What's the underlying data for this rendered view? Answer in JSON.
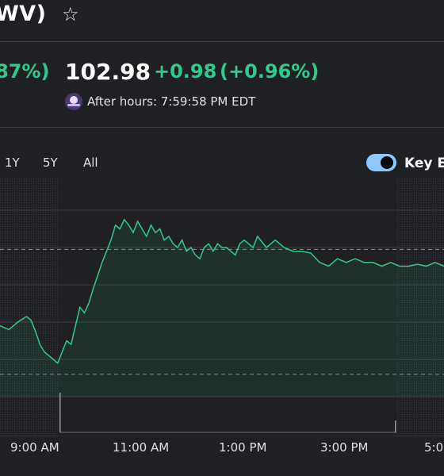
{
  "header": {
    "title": "WV)",
    "star_icon": "star-outline-icon"
  },
  "quote": {
    "regular_pct_partial": "87%)",
    "price": "102.98",
    "change": "+0.98",
    "change_pct": "(+0.96%)",
    "after_hours_icon": "sunset-icon",
    "after_hours_text": "After hours: 7:59:58 PM EDT",
    "positive_color": "#2ecc8a"
  },
  "ranges": [
    "1Y",
    "5Y",
    "All"
  ],
  "key_events": {
    "label": "Key Ev",
    "enabled": true,
    "toggle_color": "#8fc8ff"
  },
  "chart_data": {
    "type": "line",
    "x_tick_labels": [
      "9:00 AM",
      "11:00 AM",
      "1:00 PM",
      "3:00 PM",
      "5:00"
    ],
    "series_color": "#2ecc8a",
    "grid": true,
    "ylim": [
      0,
      100
    ],
    "x_range": [
      0,
      100
    ],
    "reference_levels": [
      79,
      12
    ],
    "extended_hours_shading": true,
    "x": [
      0,
      2,
      4,
      6,
      7,
      8,
      9,
      10,
      11,
      12,
      13,
      14,
      15,
      16,
      17,
      18,
      19,
      20,
      21,
      22,
      23,
      24,
      25,
      26,
      27,
      28,
      29,
      30,
      31,
      32,
      33,
      34,
      35,
      36,
      37,
      38,
      39,
      40,
      41,
      42,
      43,
      44,
      45,
      46,
      47,
      48,
      49,
      50,
      51,
      52,
      53,
      54,
      55,
      56,
      57,
      58,
      60,
      62,
      64,
      66,
      68,
      70,
      72,
      74,
      76,
      78,
      80,
      82,
      84,
      86,
      88,
      90,
      92,
      94,
      96,
      98,
      100
    ],
    "values": [
      38,
      36,
      40,
      43,
      41,
      35,
      28,
      24,
      22,
      20,
      18,
      24,
      30,
      28,
      38,
      48,
      45,
      50,
      58,
      65,
      72,
      78,
      84,
      92,
      90,
      95,
      92,
      88,
      94,
      90,
      86,
      92,
      88,
      90,
      84,
      86,
      82,
      80,
      84,
      78,
      80,
      76,
      74,
      80,
      82,
      78,
      82,
      80,
      80,
      78,
      76,
      82,
      84,
      82,
      80,
      86,
      80,
      84,
      80,
      78,
      78,
      77,
      72,
      70,
      74,
      72,
      74,
      72,
      72,
      70,
      72,
      70,
      70,
      71,
      70,
      72,
      70
    ]
  }
}
